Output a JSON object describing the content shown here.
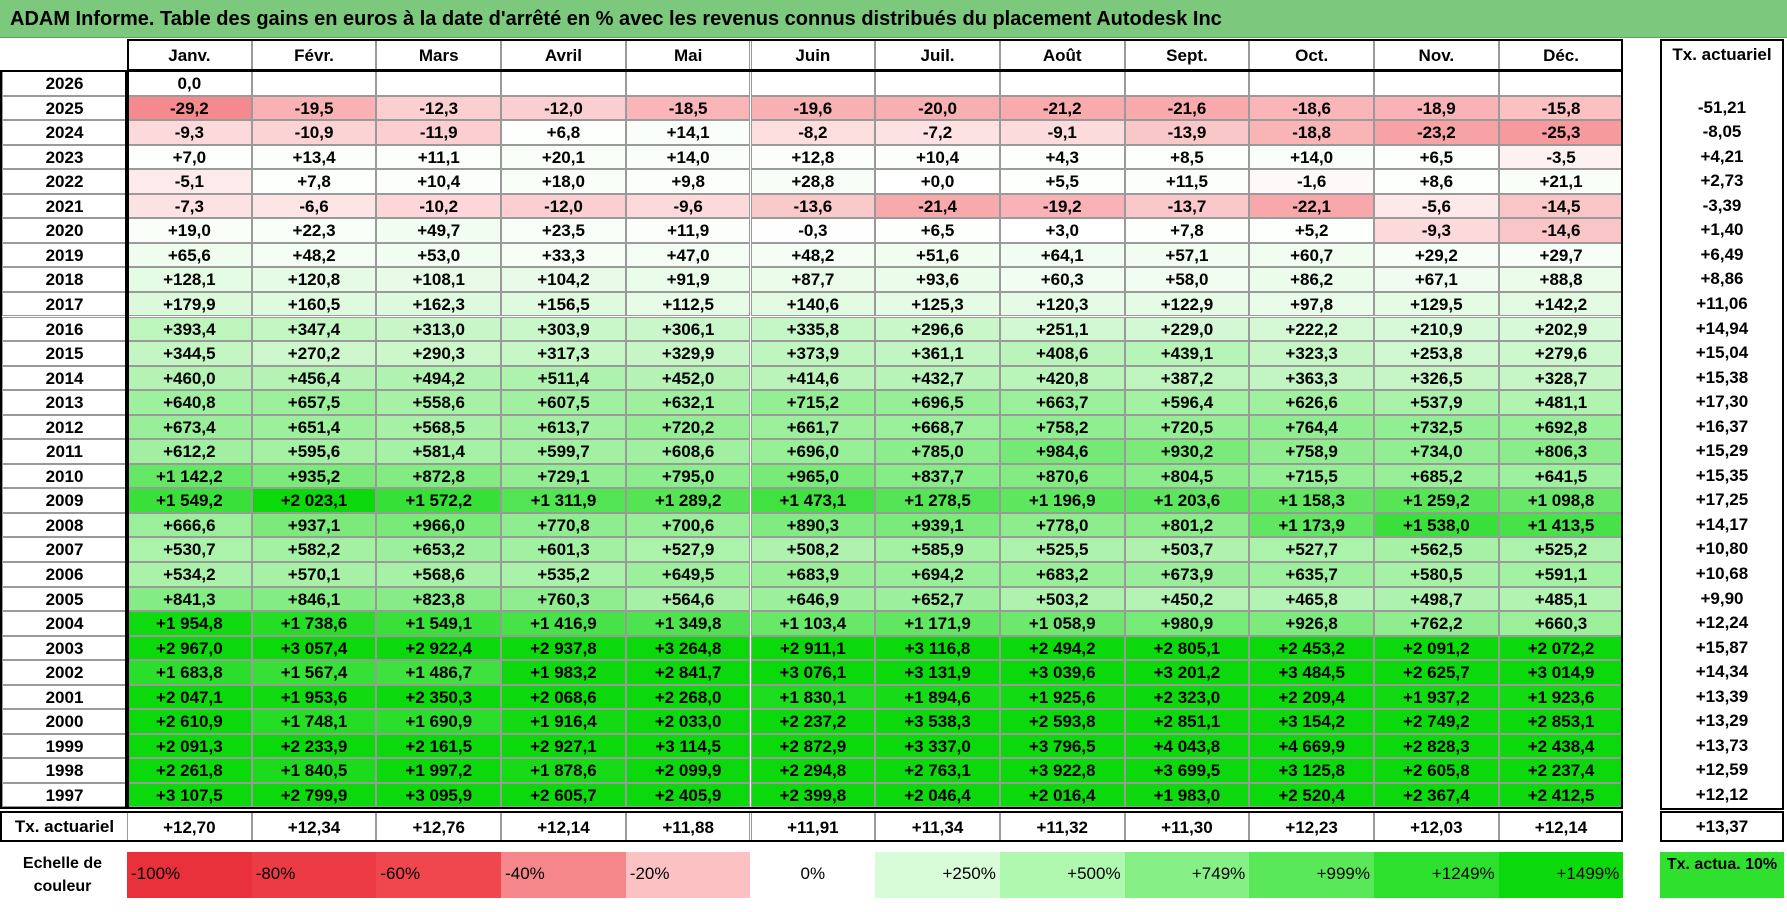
{
  "title": "ADAM Informe. Table des gains en euros à la date d'arrêté en % avec les revenus connus distribués du placement Autodesk Inc",
  "chart_data": {
    "type": "heatmap",
    "title": "ADAM Informe. Table des gains en euros à la date d'arrêté en % avec les revenus connus distribués du placement Autodesk Inc",
    "months": [
      "Janv.",
      "Févr.",
      "Mars",
      "Avril",
      "Mai",
      "Juin",
      "Juil.",
      "Août",
      "Sept.",
      "Oct.",
      "Nov.",
      "Déc."
    ],
    "rate_header": "Tx. actuariel",
    "rows": [
      {
        "year": "2026",
        "values": [
          "0,0",
          "",
          "",
          "",
          "",
          "",
          "",
          "",
          "",
          "",
          "",
          ""
        ],
        "rate": ""
      },
      {
        "year": "2025",
        "values": [
          "-29,2",
          "-19,5",
          "-12,3",
          "-12,0",
          "-18,5",
          "-19,6",
          "-20,0",
          "-21,2",
          "-21,6",
          "-18,6",
          "-18,9",
          "-15,8"
        ],
        "rate": "-51,21"
      },
      {
        "year": "2024",
        "values": [
          "-9,3",
          "-10,9",
          "-11,9",
          "+6,8",
          "+14,1",
          "-8,2",
          "-7,2",
          "-9,1",
          "-13,9",
          "-18,8",
          "-23,2",
          "-25,3"
        ],
        "rate": "-8,05"
      },
      {
        "year": "2023",
        "values": [
          "+7,0",
          "+13,4",
          "+11,1",
          "+20,1",
          "+14,0",
          "+12,8",
          "+10,4",
          "+4,3",
          "+8,5",
          "+14,0",
          "+6,5",
          "-3,5"
        ],
        "rate": "+4,21"
      },
      {
        "year": "2022",
        "values": [
          "-5,1",
          "+7,8",
          "+10,4",
          "+18,0",
          "+9,8",
          "+28,8",
          "+0,0",
          "+5,5",
          "+11,5",
          "-1,6",
          "+8,6",
          "+21,1"
        ],
        "rate": "+2,73"
      },
      {
        "year": "2021",
        "values": [
          "-7,3",
          "-6,6",
          "-10,2",
          "-12,0",
          "-9,6",
          "-13,6",
          "-21,4",
          "-19,2",
          "-13,7",
          "-22,1",
          "-5,6",
          "-14,5"
        ],
        "rate": "-3,39"
      },
      {
        "year": "2020",
        "values": [
          "+19,0",
          "+22,3",
          "+49,7",
          "+23,5",
          "+11,9",
          "-0,3",
          "+6,5",
          "+3,0",
          "+7,8",
          "+5,2",
          "-9,3",
          "-14,6"
        ],
        "rate": "+1,40"
      },
      {
        "year": "2019",
        "values": [
          "+65,6",
          "+48,2",
          "+53,0",
          "+33,3",
          "+47,0",
          "+48,2",
          "+51,6",
          "+64,1",
          "+57,1",
          "+60,7",
          "+29,2",
          "+29,7"
        ],
        "rate": "+6,49"
      },
      {
        "year": "2018",
        "values": [
          "+128,1",
          "+120,8",
          "+108,1",
          "+104,2",
          "+91,9",
          "+87,7",
          "+93,6",
          "+60,3",
          "+58,0",
          "+86,2",
          "+67,1",
          "+88,8"
        ],
        "rate": "+8,86"
      },
      {
        "year": "2017",
        "values": [
          "+179,9",
          "+160,5",
          "+162,3",
          "+156,5",
          "+112,5",
          "+140,6",
          "+125,3",
          "+120,3",
          "+122,9",
          "+97,8",
          "+129,5",
          "+142,2"
        ],
        "rate": "+11,06"
      },
      {
        "year": "2016",
        "values": [
          "+393,4",
          "+347,4",
          "+313,0",
          "+303,9",
          "+306,1",
          "+335,8",
          "+296,6",
          "+251,1",
          "+229,0",
          "+222,2",
          "+210,9",
          "+202,9"
        ],
        "rate": "+14,94"
      },
      {
        "year": "2015",
        "values": [
          "+344,5",
          "+270,2",
          "+290,3",
          "+317,3",
          "+329,9",
          "+373,9",
          "+361,1",
          "+408,6",
          "+439,1",
          "+323,3",
          "+253,8",
          "+279,6"
        ],
        "rate": "+15,04"
      },
      {
        "year": "2014",
        "values": [
          "+460,0",
          "+456,4",
          "+494,2",
          "+511,4",
          "+452,0",
          "+414,6",
          "+432,7",
          "+420,8",
          "+387,2",
          "+363,3",
          "+326,5",
          "+328,7"
        ],
        "rate": "+15,38"
      },
      {
        "year": "2013",
        "values": [
          "+640,8",
          "+657,5",
          "+558,6",
          "+607,5",
          "+632,1",
          "+715,2",
          "+696,5",
          "+663,7",
          "+596,4",
          "+626,6",
          "+537,9",
          "+481,1"
        ],
        "rate": "+17,30"
      },
      {
        "year": "2012",
        "values": [
          "+673,4",
          "+651,4",
          "+568,5",
          "+613,7",
          "+720,2",
          "+661,7",
          "+668,7",
          "+758,2",
          "+720,5",
          "+764,4",
          "+732,5",
          "+692,8"
        ],
        "rate": "+16,37"
      },
      {
        "year": "2011",
        "values": [
          "+612,2",
          "+595,6",
          "+581,4",
          "+599,7",
          "+608,6",
          "+696,0",
          "+785,0",
          "+984,6",
          "+930,2",
          "+758,9",
          "+734,0",
          "+806,3"
        ],
        "rate": "+15,29"
      },
      {
        "year": "2010",
        "values": [
          "+1 142,2",
          "+935,2",
          "+872,8",
          "+729,1",
          "+795,0",
          "+965,0",
          "+837,7",
          "+870,6",
          "+804,5",
          "+715,5",
          "+685,2",
          "+641,5"
        ],
        "rate": "+15,35"
      },
      {
        "year": "2009",
        "values": [
          "+1 549,2",
          "+2 023,1",
          "+1 572,2",
          "+1 311,9",
          "+1 289,2",
          "+1 473,1",
          "+1 278,5",
          "+1 196,9",
          "+1 203,6",
          "+1 158,3",
          "+1 259,2",
          "+1 098,8"
        ],
        "rate": "+17,25"
      },
      {
        "year": "2008",
        "values": [
          "+666,6",
          "+937,1",
          "+966,0",
          "+770,8",
          "+700,6",
          "+890,3",
          "+939,1",
          "+778,0",
          "+801,2",
          "+1 173,9",
          "+1 538,0",
          "+1 413,5"
        ],
        "rate": "+14,17"
      },
      {
        "year": "2007",
        "values": [
          "+530,7",
          "+582,2",
          "+653,2",
          "+601,3",
          "+527,9",
          "+508,2",
          "+585,9",
          "+525,5",
          "+503,7",
          "+527,7",
          "+562,5",
          "+525,2"
        ],
        "rate": "+10,80"
      },
      {
        "year": "2006",
        "values": [
          "+534,2",
          "+570,1",
          "+568,6",
          "+535,2",
          "+649,5",
          "+683,9",
          "+694,2",
          "+683,2",
          "+673,9",
          "+635,7",
          "+580,5",
          "+591,1"
        ],
        "rate": "+10,68"
      },
      {
        "year": "2005",
        "values": [
          "+841,3",
          "+846,1",
          "+823,8",
          "+760,3",
          "+564,6",
          "+646,9",
          "+652,7",
          "+503,2",
          "+450,2",
          "+465,8",
          "+498,7",
          "+485,1"
        ],
        "rate": "+9,90"
      },
      {
        "year": "2004",
        "values": [
          "+1 954,8",
          "+1 738,6",
          "+1 549,1",
          "+1 416,9",
          "+1 349,8",
          "+1 103,4",
          "+1 171,9",
          "+1 058,9",
          "+980,9",
          "+926,8",
          "+762,2",
          "+660,3"
        ],
        "rate": "+12,24"
      },
      {
        "year": "2003",
        "values": [
          "+2 967,0",
          "+3 057,4",
          "+2 922,4",
          "+2 937,8",
          "+3 264,8",
          "+2 911,1",
          "+3 116,8",
          "+2 494,2",
          "+2 805,1",
          "+2 453,2",
          "+2 091,2",
          "+2 072,2"
        ],
        "rate": "+15,87"
      },
      {
        "year": "2002",
        "values": [
          "+1 683,8",
          "+1 567,4",
          "+1 486,7",
          "+1 983,2",
          "+2 841,7",
          "+3 076,1",
          "+3 131,9",
          "+3 039,6",
          "+3 201,2",
          "+3 484,5",
          "+2 625,7",
          "+3 014,9"
        ],
        "rate": "+14,34"
      },
      {
        "year": "2001",
        "values": [
          "+2 047,1",
          "+1 953,6",
          "+2 350,3",
          "+2 068,6",
          "+2 268,0",
          "+1 830,1",
          "+1 894,6",
          "+1 925,6",
          "+2 323,0",
          "+2 209,4",
          "+1 937,2",
          "+1 923,6"
        ],
        "rate": "+13,39"
      },
      {
        "year": "2000",
        "values": [
          "+2 610,9",
          "+1 748,1",
          "+1 690,9",
          "+1 916,4",
          "+2 033,0",
          "+2 237,2",
          "+3 538,3",
          "+2 593,8",
          "+2 851,1",
          "+3 154,2",
          "+2 749,2",
          "+2 853,1"
        ],
        "rate": "+13,29"
      },
      {
        "year": "1999",
        "values": [
          "+2 091,3",
          "+2 233,9",
          "+2 161,5",
          "+2 927,1",
          "+3 114,5",
          "+2 872,9",
          "+3 337,0",
          "+3 796,5",
          "+4 043,8",
          "+4 669,9",
          "+2 828,3",
          "+2 438,4"
        ],
        "rate": "+13,73"
      },
      {
        "year": "1998",
        "values": [
          "+2 261,8",
          "+1 840,5",
          "+1 997,2",
          "+1 878,6",
          "+2 099,9",
          "+2 294,8",
          "+2 763,1",
          "+3 922,8",
          "+3 699,5",
          "+3 125,8",
          "+2 605,8",
          "+2 237,4"
        ],
        "rate": "+12,59"
      },
      {
        "year": "1997",
        "values": [
          "+3 107,5",
          "+2 799,9",
          "+3 095,9",
          "+2 605,7",
          "+2 405,9",
          "+2 399,8",
          "+2 046,4",
          "+2 016,4",
          "+1 983,0",
          "+2 520,4",
          "+2 367,4",
          "+2 412,5"
        ],
        "rate": "+12,12"
      }
    ],
    "footer_row": {
      "label": "Tx. actuariel",
      "values": [
        "+12,70",
        "+12,34",
        "+12,76",
        "+12,14",
        "+11,88",
        "+11,91",
        "+11,34",
        "+11,32",
        "+11,30",
        "+12,23",
        "+12,03",
        "+12,14"
      ],
      "rate": "+13,37"
    },
    "scale": {
      "label": "Echelle de couleur",
      "steps": [
        {
          "text": "-100%",
          "value": -100,
          "color": "#e8313a"
        },
        {
          "text": "-80%",
          "value": -80,
          "color": "#ec3b44"
        },
        {
          "text": "-60%",
          "value": -60,
          "color": "#f0474f"
        },
        {
          "text": "-40%",
          "value": -40,
          "color": "#f5878b"
        },
        {
          "text": "-20%",
          "value": -20,
          "color": "#fbc1c3"
        },
        {
          "text": "0%",
          "value": 0,
          "color": "#ffffff"
        },
        {
          "text": "+250%",
          "value": 250,
          "color": "#d8fcd8"
        },
        {
          "text": "+500%",
          "value": 500,
          "color": "#b0f7b0"
        },
        {
          "text": "+749%",
          "value": 749,
          "color": "#86f086"
        },
        {
          "text": "+999%",
          "value": 999,
          "color": "#58e858"
        },
        {
          "text": "+1249%",
          "value": 1249,
          "color": "#2de02d"
        },
        {
          "text": "+1499%",
          "value": 1499,
          "color": "#0cd90c"
        }
      ],
      "reference": {
        "text": "Tx. actua. 10%",
        "color": "#2fe02f"
      }
    }
  }
}
